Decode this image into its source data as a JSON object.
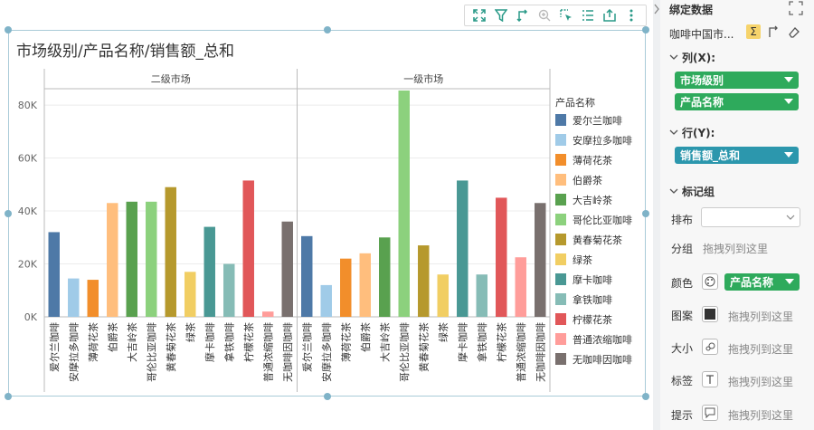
{
  "chart_data": {
    "type": "bar",
    "title": "市场级别/产品名称/销售额_总和",
    "facets": [
      "二级市场",
      "一级市场"
    ],
    "categories": [
      "爱尔兰咖啡",
      "安摩拉多咖啡",
      "薄荷花茶",
      "伯爵茶",
      "大吉岭茶",
      "哥伦比亚咖啡",
      "黄春菊花茶",
      "绿茶",
      "摩卡咖啡",
      "拿铁咖啡",
      "柠檬花茶",
      "普通浓缩咖啡",
      "无咖啡因咖啡"
    ],
    "series": [
      {
        "name": "二级市场",
        "values": [
          32000,
          14500,
          14000,
          43000,
          43500,
          43500,
          49000,
          17000,
          34000,
          20000,
          51500,
          2000,
          36000
        ]
      },
      {
        "name": "一级市场",
        "values": [
          30500,
          12000,
          22000,
          24000,
          30000,
          85500,
          27000,
          16000,
          51500,
          16000,
          45000,
          22500,
          43000
        ]
      }
    ],
    "ylim": [
      0,
      88000
    ],
    "yticks": [
      "0K",
      "20K",
      "40K",
      "60K",
      "80K"
    ],
    "ytick_values": [
      0,
      20000,
      40000,
      60000,
      80000
    ],
    "legend": {
      "title": "产品名称",
      "placement": "right",
      "items": [
        "爱尔兰咖啡",
        "安摩拉多咖啡",
        "薄荷花茶",
        "伯爵茶",
        "大吉岭茶",
        "哥伦比亚咖啡",
        "黄春菊花茶",
        "绿茶",
        "摩卡咖啡",
        "拿铁咖啡",
        "柠檬花茶",
        "普通浓缩咖啡",
        "无咖啡因咖啡"
      ]
    },
    "colors": [
      "#4e79a7",
      "#a0cbe8",
      "#f28e2b",
      "#ffbe7d",
      "#59a14f",
      "#8cd17d",
      "#b6992d",
      "#f1ce63",
      "#499894",
      "#86bcb6",
      "#e15759",
      "#ff9d9a",
      "#79706e"
    ],
    "grid": true
  },
  "toolbar": {
    "icons": [
      "fullscreen-icon",
      "filter-icon",
      "swap-axes-icon",
      "zoom-icon",
      "select-icon",
      "list-icon",
      "export-icon",
      "more-icon"
    ]
  },
  "panel": {
    "header": "绑定数据",
    "dataset": "咖啡中国市...",
    "columns_label": "列(X):",
    "columns": [
      "市场级别",
      "产品名称"
    ],
    "rows_label": "行(Y):",
    "rows": [
      "销售额_总和"
    ],
    "marks_label": "标记组",
    "layout_label": "排布",
    "group_label": "分组",
    "drop_hint": "拖拽列到这里",
    "color_label": "颜色",
    "color_field": "产品名称",
    "pattern_label": "图案",
    "size_label": "大小",
    "label_label": "标签",
    "tooltip_label": "提示",
    "accent_green": "#2eaa5c",
    "accent_teal": "#2c97ad"
  }
}
